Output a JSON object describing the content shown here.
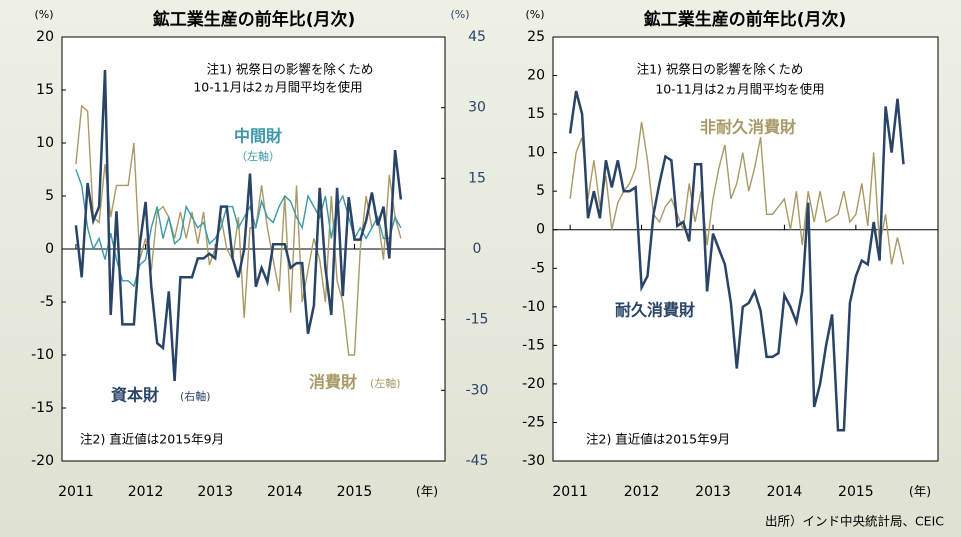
{
  "source": "出所）インド中央統計局、CEIC",
  "chart_data": [
    {
      "type": "line",
      "title": "鉱工業生産の前年比(月次)",
      "y_label": "(%)",
      "y2_label": "(%)",
      "x_label": "(年)",
      "annotations": [
        "注1) 祝祭日の影響を除くため",
        "10-11月は2ヵ月間平均を使用",
        "注2) 直近値は2015年9月"
      ],
      "xlim": [
        2010.8,
        2016.3
      ],
      "xticks": [
        2011,
        2012,
        2013,
        2014,
        2015
      ],
      "ylim": [
        -20,
        20
      ],
      "yticks": [
        -20,
        -15,
        -10,
        -5,
        0,
        5,
        10,
        15,
        20
      ],
      "y2lim": [
        -45,
        45
      ],
      "y2ticks": [
        -45,
        -30,
        -15,
        0,
        15,
        30,
        45
      ],
      "x": [
        2011,
        2011.083,
        2011.167,
        2011.25,
        2011.333,
        2011.417,
        2011.5,
        2011.583,
        2011.667,
        2011.75,
        2011.833,
        2011.917,
        2012,
        2012.083,
        2012.167,
        2012.25,
        2012.333,
        2012.417,
        2012.5,
        2012.583,
        2012.667,
        2012.75,
        2012.833,
        2012.917,
        2013,
        2013.083,
        2013.167,
        2013.25,
        2013.333,
        2013.417,
        2013.5,
        2013.583,
        2013.667,
        2013.75,
        2013.833,
        2013.917,
        2014,
        2014.083,
        2014.167,
        2014.25,
        2014.333,
        2014.417,
        2014.5,
        2014.583,
        2014.667,
        2014.75,
        2014.833,
        2014.917,
        2015,
        2015.083,
        2015.167,
        2015.25,
        2015.333,
        2015.417,
        2015.5,
        2015.583,
        2015.667
      ],
      "series": [
        {
          "name": "消費財",
          "axis_label": "(左軸)",
          "color": "#a89a66",
          "values": [
            8,
            13.5,
            13,
            3,
            2.5,
            8,
            3,
            6,
            6,
            6,
            10,
            -1,
            1,
            -2,
            3.5,
            4,
            3,
            1,
            3.5,
            1,
            3.5,
            0.5,
            3.5,
            -1.5,
            0,
            3,
            0,
            -1,
            3,
            -6.5,
            2,
            2,
            6,
            2,
            -1,
            -4,
            5,
            -6,
            6,
            -5,
            -2,
            1,
            -1,
            -5,
            5,
            -3,
            -5,
            -10,
            -10,
            0,
            5,
            2,
            3,
            -1,
            7,
            3,
            1
          ]
        },
        {
          "name": "中間財",
          "axis_label": "（左軸）",
          "color": "#3a98a8",
          "values": [
            7.5,
            6,
            2,
            0,
            1,
            -1,
            1.5,
            -1,
            -3,
            -3,
            -3.5,
            -1.5,
            -1,
            2,
            4,
            1,
            3,
            0.5,
            1,
            4,
            3,
            2,
            2.5,
            0.5,
            1,
            2,
            4,
            4,
            2,
            3,
            4,
            2,
            4.5,
            3,
            2.5,
            4,
            5,
            4.5,
            3,
            2,
            5,
            4,
            3,
            5,
            1,
            4,
            5,
            3,
            1,
            2,
            1,
            2,
            3,
            1,
            1,
            3,
            2
          ]
        },
        {
          "name": "資本財",
          "axis_label": "(右軸)",
          "color": "#2a4468",
          "axis": "y2",
          "values": [
            5,
            -6,
            14,
            6,
            9,
            38,
            -14,
            8,
            -16,
            -16,
            -16,
            1,
            10,
            -8,
            -20,
            -21,
            -9,
            -28,
            -6,
            -6,
            -6,
            -2,
            -2,
            -1,
            -2,
            9,
            9,
            -2,
            -6,
            0,
            16,
            -8,
            -4,
            -7,
            1,
            1,
            1,
            -4,
            -3,
            -3,
            -18,
            -12,
            13,
            -4,
            -14,
            13,
            -10,
            11,
            2,
            2,
            6,
            12,
            5,
            9,
            -2,
            21,
            10.5
          ]
        }
      ]
    },
    {
      "type": "line",
      "title": "鉱工業生産の前年比(月次)",
      "y_label": "(%)",
      "x_label": "(年)",
      "annotations": [
        "注1) 祝祭日の影響を除くため",
        "10-11月は2ヵ月間平均を使用",
        "注2) 直近値は2015年9月"
      ],
      "xlim": [
        2010.76,
        2016.15
      ],
      "xticks": [
        2011,
        2012,
        2013,
        2014,
        2015
      ],
      "ylim": [
        -30,
        25
      ],
      "yticks": [
        -30,
        -25,
        -20,
        -15,
        -10,
        -5,
        0,
        5,
        10,
        15,
        20,
        25
      ],
      "x": [
        2011,
        2011.083,
        2011.167,
        2011.25,
        2011.333,
        2011.417,
        2011.5,
        2011.583,
        2011.667,
        2011.75,
        2011.833,
        2011.917,
        2012,
        2012.083,
        2012.167,
        2012.25,
        2012.333,
        2012.417,
        2012.5,
        2012.583,
        2012.667,
        2012.75,
        2012.833,
        2012.917,
        2013,
        2013.083,
        2013.167,
        2013.25,
        2013.333,
        2013.417,
        2013.5,
        2013.583,
        2013.667,
        2013.75,
        2013.833,
        2013.917,
        2014,
        2014.083,
        2014.167,
        2014.25,
        2014.333,
        2014.417,
        2014.5,
        2014.583,
        2014.667,
        2014.75,
        2014.833,
        2014.917,
        2015,
        2015.083,
        2015.167,
        2015.25,
        2015.333,
        2015.417,
        2015.5,
        2015.583,
        2015.667
      ],
      "series": [
        {
          "name": "非耐久消費財",
          "color": "#a89a66",
          "values": [
            4,
            10,
            12,
            4,
            9,
            3,
            7,
            0,
            3.5,
            5,
            6,
            8,
            14,
            9,
            2,
            1,
            3,
            4,
            2,
            0,
            6,
            1,
            5,
            -2,
            4,
            8,
            11,
            4,
            6,
            10,
            5,
            8,
            12,
            2,
            2,
            3,
            4,
            0,
            5,
            -2,
            5,
            1,
            5,
            1,
            1.5,
            2,
            5,
            1,
            2,
            6,
            0.5,
            10,
            -2,
            2,
            -4.5,
            -1,
            -4.5
          ]
        },
        {
          "name": "耐久消費財",
          "color": "#2a4468",
          "values": [
            12.5,
            18,
            15,
            1.5,
            5,
            1.5,
            9,
            5.5,
            9,
            5,
            5,
            5.5,
            -7.5,
            -6,
            2,
            6,
            9.5,
            9,
            0.5,
            1,
            -1.5,
            8.5,
            8.5,
            -8,
            -0.5,
            -2.5,
            -4.5,
            -9.5,
            -18,
            -10,
            -9.5,
            -8,
            -10.5,
            -16.5,
            -16.5,
            -16,
            -8.5,
            -10,
            -12,
            -8,
            3.5,
            -23,
            -20,
            -15,
            -11,
            -26,
            -26,
            -9.5,
            -6,
            -4,
            -4.5,
            1,
            -4,
            16,
            10,
            17,
            8.5
          ]
        }
      ]
    }
  ]
}
